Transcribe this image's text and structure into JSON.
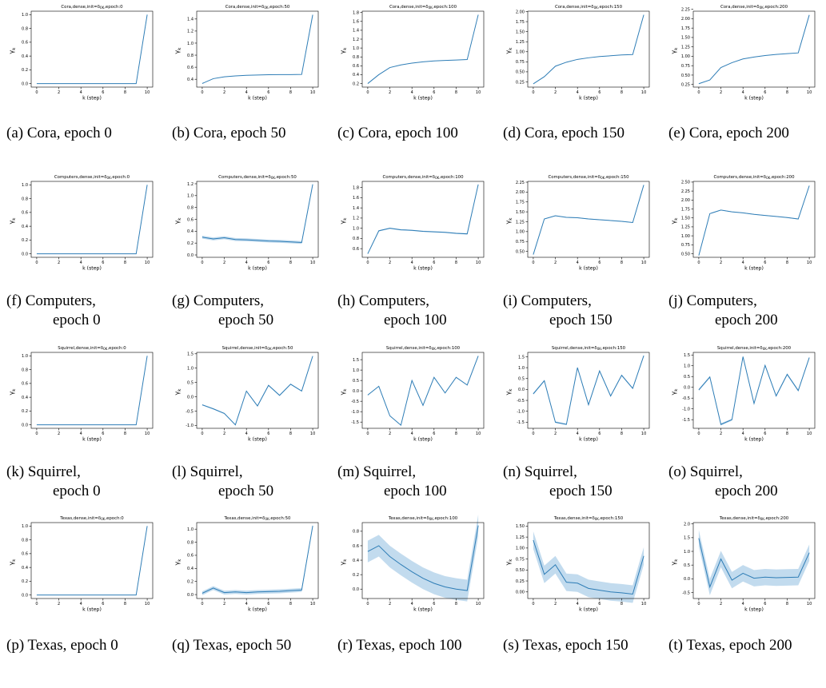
{
  "chart_data": [
    {
      "type": "line",
      "title": "Cora,dense,init=δ_{0K},epoch:0",
      "xlabel": "k (step)",
      "ylabel": "γ_k",
      "x": [
        0,
        1,
        2,
        3,
        4,
        5,
        6,
        7,
        8,
        9,
        10
      ],
      "values": [
        0,
        0,
        0,
        0,
        0,
        0,
        0,
        0,
        0,
        0,
        1.0
      ],
      "band": 0,
      "ylim": [
        -0.05,
        1.05
      ],
      "yticks": [
        "0.0",
        "0.2",
        "0.4",
        "0.6",
        "0.8",
        "1.0"
      ],
      "xticks": [
        "0",
        "2",
        "4",
        "6",
        "8",
        "10"
      ],
      "caption": [
        "(a) Cora, epoch 0"
      ]
    },
    {
      "type": "line",
      "title": "Cora,dense,init=δ_{0K},epoch:50",
      "xlabel": "k (step)",
      "ylabel": "γ_k",
      "x": [
        0,
        1,
        2,
        3,
        4,
        5,
        6,
        7,
        8,
        9,
        10
      ],
      "values": [
        0.33,
        0.41,
        0.44,
        0.455,
        0.465,
        0.47,
        0.475,
        0.477,
        0.478,
        0.48,
        1.47
      ],
      "band": 0,
      "ylim": [
        0.27,
        1.53
      ],
      "yticks": [
        "0.4",
        "0.6",
        "0.8",
        "1.0",
        "1.2",
        "1.4"
      ],
      "xticks": [
        "0",
        "2",
        "4",
        "6",
        "8",
        "10"
      ],
      "caption": [
        "(b) Cora, epoch 50"
      ]
    },
    {
      "type": "line",
      "title": "Cora,dense,init=δ_{0K},epoch:100",
      "xlabel": "k (step)",
      "ylabel": "γ_k",
      "x": [
        0,
        1,
        2,
        3,
        4,
        5,
        6,
        7,
        8,
        9,
        10
      ],
      "values": [
        0.2,
        0.4,
        0.56,
        0.62,
        0.66,
        0.69,
        0.71,
        0.72,
        0.73,
        0.74,
        1.75
      ],
      "band": 0,
      "ylim": [
        0.12,
        1.83
      ],
      "yticks": [
        "0.2",
        "0.4",
        "0.6",
        "0.8",
        "1.0",
        "1.2",
        "1.4",
        "1.6",
        "1.8"
      ],
      "xticks": [
        "0",
        "2",
        "4",
        "6",
        "8",
        "10"
      ],
      "caption": [
        "(c) Cora, epoch 100"
      ]
    },
    {
      "type": "line",
      "title": "Cora,dense,init=δ_{0K},epoch:150",
      "xlabel": "k (step)",
      "ylabel": "γ_k",
      "x": [
        0,
        1,
        2,
        3,
        4,
        5,
        6,
        7,
        8,
        9,
        10
      ],
      "values": [
        0.2,
        0.38,
        0.64,
        0.74,
        0.81,
        0.85,
        0.88,
        0.9,
        0.92,
        0.93,
        1.92
      ],
      "band": 0,
      "ylim": [
        0.12,
        2.01
      ],
      "yticks": [
        "0.25",
        "0.50",
        "0.75",
        "1.00",
        "1.25",
        "1.50",
        "1.75",
        "2.00"
      ],
      "xticks": [
        "0",
        "2",
        "4",
        "6",
        "8",
        "10"
      ],
      "caption": [
        "(d) Cora, epoch 150"
      ]
    },
    {
      "type": "line",
      "title": "Cora,dense,init=δ_{0K},epoch:200",
      "xlabel": "k (step)",
      "ylabel": "γ_k",
      "x": [
        0,
        1,
        2,
        3,
        4,
        5,
        6,
        7,
        8,
        9,
        10
      ],
      "values": [
        0.27,
        0.37,
        0.7,
        0.83,
        0.93,
        0.98,
        1.02,
        1.05,
        1.07,
        1.09,
        2.1
      ],
      "band": 0,
      "ylim": [
        0.18,
        2.2
      ],
      "yticks": [
        "0.25",
        "0.50",
        "0.75",
        "1.00",
        "1.25",
        "1.50",
        "1.75",
        "2.00",
        "2.25"
      ],
      "xticks": [
        "0",
        "2",
        "4",
        "6",
        "8",
        "10"
      ],
      "caption": [
        "(e) Cora, epoch 200"
      ]
    },
    {
      "type": "line",
      "title": "Computers,dense,init=δ_{0K},epoch:0",
      "xlabel": "k (step)",
      "ylabel": "γ_k",
      "x": [
        0,
        1,
        2,
        3,
        4,
        5,
        6,
        7,
        8,
        9,
        10
      ],
      "values": [
        0,
        0,
        0,
        0,
        0,
        0,
        0,
        0,
        0,
        0,
        1.0
      ],
      "band": 0,
      "ylim": [
        -0.05,
        1.05
      ],
      "yticks": [
        "0.0",
        "0.2",
        "0.4",
        "0.6",
        "0.8",
        "1.0"
      ],
      "xticks": [
        "0",
        "2",
        "4",
        "6",
        "8",
        "10"
      ],
      "caption": [
        "(f) Computers,",
        "epoch 0"
      ]
    },
    {
      "type": "line",
      "title": "Computers,dense,init=δ_{0K},epoch:50",
      "xlabel": "k (step)",
      "ylabel": "γ_k",
      "x": [
        0,
        1,
        2,
        3,
        4,
        5,
        6,
        7,
        8,
        9,
        10
      ],
      "values": [
        0.3,
        0.27,
        0.29,
        0.26,
        0.255,
        0.245,
        0.235,
        0.23,
        0.22,
        0.21,
        1.19
      ],
      "band": 0.025,
      "ylim": [
        -0.04,
        1.24
      ],
      "yticks": [
        "0.0",
        "0.2",
        "0.4",
        "0.6",
        "0.8",
        "1.0",
        "1.2"
      ],
      "xticks": [
        "0",
        "2",
        "4",
        "6",
        "8",
        "10"
      ],
      "caption": [
        "(g) Computers,",
        "epoch 50"
      ]
    },
    {
      "type": "line",
      "title": "Computers,dense,init=δ_{0K},epoch:100",
      "xlabel": "k (step)",
      "ylabel": "γ_k",
      "x": [
        0,
        1,
        2,
        3,
        4,
        5,
        6,
        7,
        8,
        9,
        10
      ],
      "values": [
        0.5,
        0.95,
        1.0,
        0.97,
        0.96,
        0.94,
        0.93,
        0.92,
        0.9,
        0.89,
        1.86
      ],
      "band": 0.012,
      "ylim": [
        0.43,
        1.92
      ],
      "yticks": [
        "0.6",
        "0.8",
        "1.0",
        "1.2",
        "1.4",
        "1.6",
        "1.8"
      ],
      "xticks": [
        "0",
        "2",
        "4",
        "6",
        "8",
        "10"
      ],
      "caption": [
        "(h) Computers,",
        "epoch 100"
      ]
    },
    {
      "type": "line",
      "title": "Computers,dense,init=δ_{0K},epoch:150",
      "xlabel": "k (step)",
      "ylabel": "γ_k",
      "x": [
        0,
        1,
        2,
        3,
        4,
        5,
        6,
        7,
        8,
        9,
        10
      ],
      "values": [
        0.42,
        1.32,
        1.4,
        1.36,
        1.35,
        1.32,
        1.3,
        1.28,
        1.26,
        1.23,
        2.18
      ],
      "band": 0.01,
      "ylim": [
        0.35,
        2.27
      ],
      "yticks": [
        "0.50",
        "0.75",
        "1.00",
        "1.25",
        "1.50",
        "1.75",
        "2.00",
        "2.25"
      ],
      "xticks": [
        "0",
        "2",
        "4",
        "6",
        "8",
        "10"
      ],
      "caption": [
        "(i) Computers,",
        "epoch 150"
      ]
    },
    {
      "type": "line",
      "title": "Computers,dense,init=δ_{0K},epoch:200",
      "xlabel": "k (step)",
      "ylabel": "γ_k",
      "x": [
        0,
        1,
        2,
        3,
        4,
        5,
        6,
        7,
        8,
        9,
        10
      ],
      "values": [
        0.45,
        1.62,
        1.72,
        1.67,
        1.64,
        1.6,
        1.57,
        1.54,
        1.51,
        1.47,
        2.4
      ],
      "band": 0.01,
      "ylim": [
        0.4,
        2.52
      ],
      "yticks": [
        "0.50",
        "0.75",
        "1.00",
        "1.25",
        "1.50",
        "1.75",
        "2.00",
        "2.25",
        "2.50"
      ],
      "xticks": [
        "0",
        "2",
        "4",
        "6",
        "8",
        "10"
      ],
      "caption": [
        "(j) Computers,",
        "epoch 200"
      ]
    },
    {
      "type": "line",
      "title": "Squirrel,dense,init=δ_{0K},epoch:0",
      "xlabel": "k (step)",
      "ylabel": "γ_k",
      "x": [
        0,
        1,
        2,
        3,
        4,
        5,
        6,
        7,
        8,
        9,
        10
      ],
      "values": [
        0,
        0,
        0,
        0,
        0,
        0,
        0,
        0,
        0,
        0,
        1.0
      ],
      "band": 0,
      "ylim": [
        -0.05,
        1.05
      ],
      "yticks": [
        "0.0",
        "0.2",
        "0.4",
        "0.6",
        "0.8",
        "1.0"
      ],
      "xticks": [
        "0",
        "2",
        "4",
        "6",
        "8",
        "10"
      ],
      "caption": [
        "(k) Squirrel,",
        "epoch 0"
      ]
    },
    {
      "type": "line",
      "title": "Squirrel,dense,init=δ_{0K},epoch:50",
      "xlabel": "k (step)",
      "ylabel": "γ_k",
      "x": [
        0,
        1,
        2,
        3,
        4,
        5,
        6,
        7,
        8,
        9,
        10
      ],
      "values": [
        -0.28,
        -0.42,
        -0.58,
        -0.98,
        0.2,
        -0.32,
        0.4,
        0.05,
        0.44,
        0.2,
        1.42
      ],
      "band": 0.02,
      "ylim": [
        -1.1,
        1.55
      ],
      "yticks": [
        "-1.0",
        "-0.5",
        "0.0",
        "0.5",
        "1.0",
        "1.5"
      ],
      "xticks": [
        "0",
        "2",
        "4",
        "6",
        "8",
        "10"
      ],
      "caption": [
        "(l) Squirrel,",
        "epoch 50"
      ]
    },
    {
      "type": "line",
      "title": "Squirrel,dense,init=δ_{0K},epoch:100",
      "xlabel": "k (step)",
      "ylabel": "γ_k",
      "x": [
        0,
        1,
        2,
        3,
        4,
        5,
        6,
        7,
        8,
        9,
        10
      ],
      "values": [
        -0.2,
        0.22,
        -1.2,
        -1.65,
        0.5,
        -0.7,
        0.65,
        -0.1,
        0.65,
        0.28,
        1.68
      ],
      "band": 0.02,
      "ylim": [
        -1.8,
        1.85
      ],
      "yticks": [
        "-1.5",
        "-1.0",
        "-0.5",
        "0.0",
        "0.5",
        "1.0",
        "1.5"
      ],
      "xticks": [
        "0",
        "2",
        "4",
        "6",
        "8",
        "10"
      ],
      "caption": [
        "(m) Squirrel,",
        "epoch 100"
      ]
    },
    {
      "type": "line",
      "title": "Squirrel,dense,init=δ_{0K},epoch:150",
      "xlabel": "k (step)",
      "ylabel": "γ_k",
      "x": [
        0,
        1,
        2,
        3,
        4,
        5,
        6,
        7,
        8,
        9,
        10
      ],
      "values": [
        -0.2,
        0.4,
        -1.5,
        -1.6,
        1.0,
        -0.7,
        0.85,
        -0.3,
        0.65,
        0.05,
        1.55
      ],
      "band": 0.04,
      "ylim": [
        -1.78,
        1.7
      ],
      "yticks": [
        "-1.5",
        "-1.0",
        "-0.5",
        "0.0",
        "0.5",
        "1.0",
        "1.5"
      ],
      "xticks": [
        "0",
        "2",
        "4",
        "6",
        "8",
        "10"
      ],
      "caption": [
        "(n) Squirrel,",
        "epoch 150"
      ]
    },
    {
      "type": "line",
      "title": "Squirrel,dense,init=δ_{0K},epoch:200",
      "xlabel": "k (step)",
      "ylabel": "γ_k",
      "x": [
        0,
        1,
        2,
        3,
        4,
        5,
        6,
        7,
        8,
        9,
        10
      ],
      "values": [
        -0.12,
        0.48,
        -1.72,
        -1.5,
        1.42,
        -0.75,
        1.02,
        -0.4,
        0.6,
        -0.15,
        1.38
      ],
      "band": 0.05,
      "ylim": [
        -1.9,
        1.62
      ],
      "yticks": [
        "-1.5",
        "-1.0",
        "-0.5",
        "0.0",
        "0.5",
        "1.0",
        "1.5"
      ],
      "xticks": [
        "0",
        "2",
        "4",
        "6",
        "8",
        "10"
      ],
      "caption": [
        "(o) Squirrel,",
        "epoch 200"
      ]
    },
    {
      "type": "line",
      "title": "Texas,dense,init=δ_{0K},epoch:0",
      "xlabel": "k (step)",
      "ylabel": "γ_k",
      "x": [
        0,
        1,
        2,
        3,
        4,
        5,
        6,
        7,
        8,
        9,
        10
      ],
      "values": [
        0,
        0,
        0,
        0,
        0,
        0,
        0,
        0,
        0,
        0,
        1.0
      ],
      "band": 0,
      "ylim": [
        -0.05,
        1.05
      ],
      "yticks": [
        "0.0",
        "0.2",
        "0.4",
        "0.6",
        "0.8",
        "1.0"
      ],
      "xticks": [
        "0",
        "2",
        "4",
        "6",
        "8",
        "10"
      ],
      "caption": [
        "(p) Texas, epoch 0"
      ]
    },
    {
      "type": "line",
      "title": "Texas,dense,init=δ_{0K},epoch:50",
      "xlabel": "k (step)",
      "ylabel": "γ_k",
      "x": [
        0,
        1,
        2,
        3,
        4,
        5,
        6,
        7,
        8,
        9,
        10
      ],
      "values": [
        0.02,
        0.1,
        0.03,
        0.04,
        0.03,
        0.04,
        0.045,
        0.05,
        0.06,
        0.07,
        1.05
      ],
      "band": 0.03,
      "ylim": [
        -0.06,
        1.1
      ],
      "yticks": [
        "0.0",
        "0.2",
        "0.4",
        "0.6",
        "0.8",
        "1.0"
      ],
      "xticks": [
        "0",
        "2",
        "4",
        "6",
        "8",
        "10"
      ],
      "caption": [
        "(q) Texas, epoch 50"
      ]
    },
    {
      "type": "line",
      "title": "Texas,dense,init=δ_{0K},epoch:100",
      "xlabel": "k (step)",
      "ylabel": "γ_k",
      "x": [
        0,
        1,
        2,
        3,
        4,
        5,
        6,
        7,
        8,
        9,
        10
      ],
      "values": [
        0.52,
        0.6,
        0.45,
        0.34,
        0.24,
        0.15,
        0.08,
        0.03,
        0.0,
        -0.02,
        0.88
      ],
      "band": 0.15,
      "ylim": [
        -0.13,
        0.92
      ],
      "yticks": [
        "0.0",
        "0.2",
        "0.4",
        "0.6",
        "0.8"
      ],
      "xticks": [
        "0",
        "2",
        "4",
        "6",
        "8",
        "10"
      ],
      "caption": [
        "(r) Texas, epoch 100"
      ]
    },
    {
      "type": "line",
      "title": "Texas,dense,init=δ_{0K},epoch:150",
      "xlabel": "k (step)",
      "ylabel": "γ_k",
      "x": [
        0,
        1,
        2,
        3,
        4,
        5,
        6,
        7,
        8,
        9,
        10
      ],
      "values": [
        1.18,
        0.4,
        0.62,
        0.22,
        0.2,
        0.08,
        0.04,
        0.0,
        -0.02,
        -0.05,
        0.82
      ],
      "band": 0.2,
      "ylim": [
        -0.15,
        1.58
      ],
      "yticks": [
        "0.00",
        "0.25",
        "0.50",
        "0.75",
        "1.00",
        "1.25",
        "1.50"
      ],
      "xticks": [
        "0",
        "2",
        "4",
        "6",
        "8",
        "10"
      ],
      "caption": [
        "(s) Texas, epoch 150"
      ]
    },
    {
      "type": "line",
      "title": "Texas,dense,init=δ_{0K},epoch:200",
      "xlabel": "k (step)",
      "ylabel": "γ_k",
      "x": [
        0,
        1,
        2,
        3,
        4,
        5,
        6,
        7,
        8,
        9,
        10
      ],
      "values": [
        1.48,
        -0.3,
        0.72,
        -0.05,
        0.2,
        0.02,
        0.06,
        0.04,
        0.05,
        0.06,
        0.95
      ],
      "band": 0.3,
      "ylim": [
        -0.72,
        2.05
      ],
      "yticks": [
        "-0.5",
        "0.0",
        "0.5",
        "1.0",
        "1.5",
        "2.0"
      ],
      "xticks": [
        "0",
        "2",
        "4",
        "6",
        "8",
        "10"
      ],
      "caption": [
        "(t) Texas, epoch 200"
      ]
    }
  ],
  "style": {
    "line_color": "#2e7db6",
    "band_color": "#aecfe8"
  }
}
